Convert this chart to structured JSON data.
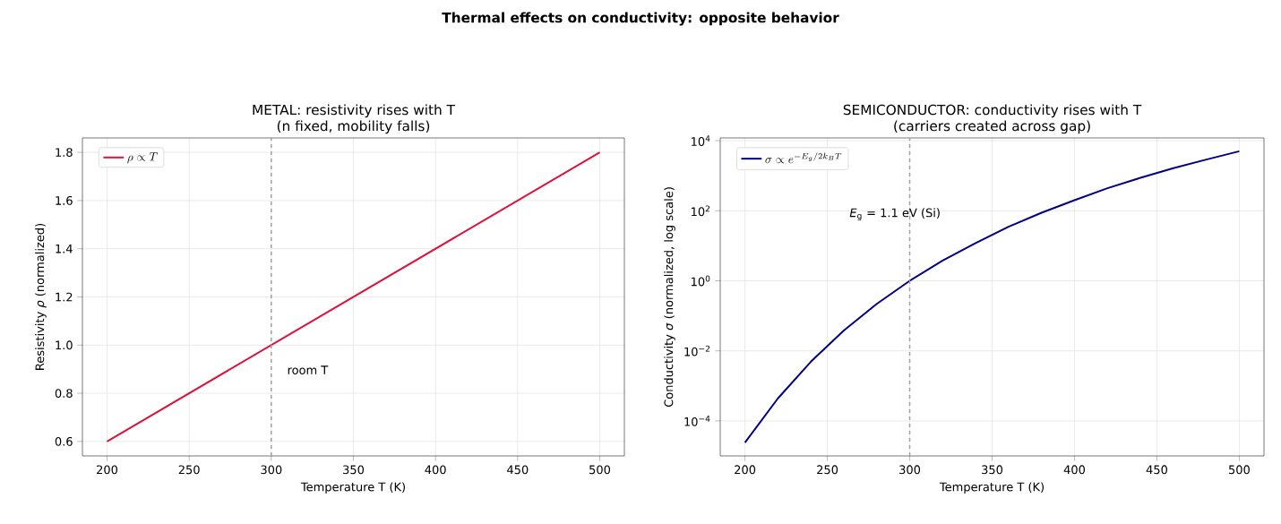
{
  "chart_data": [
    {
      "type": "line",
      "title": "METAL: resistivity rises with T",
      "subtitle": "(n fixed, mobility falls)",
      "xlabel": "Temperature T (K)",
      "ylabel": "Resistivity *ρ* (normalized)",
      "x": [
        200,
        500
      ],
      "series": [
        {
          "name": "\\rho \\propto T",
          "color": "#dc143c",
          "values": [
            0.6,
            1.8
          ]
        }
      ],
      "xlim": [
        185,
        515
      ],
      "ylim": [
        0.54,
        1.86
      ],
      "xticks": [
        200,
        250,
        300,
        350,
        400,
        450,
        500
      ],
      "yticks": [
        0.6,
        0.8,
        {
          "value": 1,
          "label": "1.0"
        },
        1.2,
        1.4,
        1.6,
        1.8
      ],
      "grid": true,
      "legend": "top left",
      "marker": "none",
      "line_style": "solid",
      "ref_lines": [
        {
          "axis": "x",
          "value": 300,
          "color": "#a0a0a0",
          "line_style": "dashed"
        }
      ],
      "annotations": [
        "Thermal effects on conductivity: opposite behavior",
        "room T"
      ]
    },
    {
      "type": "line",
      "title": "SEMICONDUCTOR: conductivity rises with T",
      "subtitle": "(carriers created across gap)",
      "xlabel": "Temperature T (K)",
      "ylabel": "Conductivity *σ* (normalized, log scale)",
      "x": [
        200,
        220,
        240,
        260,
        280,
        300,
        320,
        340,
        360,
        380,
        400,
        420,
        440,
        460,
        480,
        500
      ],
      "series": [
        {
          "name": "\\sigma \\propto e^{-E_g/2k_BT}",
          "color": "#000080",
          "values": [
            2.4e-05,
            0.00044,
            0.0049,
            0.038,
            0.22,
            1,
            3.8,
            12,
            35,
            88,
            200,
            440,
            870,
            1640,
            2900,
            5000
          ]
        }
      ],
      "log": "y",
      "xlim": [
        185,
        515
      ],
      "ylim": [
        1e-05,
        12000
      ],
      "xticks": [
        200,
        250,
        300,
        350,
        400,
        450,
        500
      ],
      "yticks": [
        {
          "value": 0.0001,
          "label": "10$^{−4}$"
        },
        {
          "value": 0.01,
          "label": "10$^{−2}$"
        },
        {
          "value": 1,
          "label": "10$^{0}$"
        },
        {
          "value": 100,
          "label": "10$^{2}$"
        },
        {
          "value": 10000,
          "label": "10$^{4}$"
        }
      ],
      "grid": true,
      "legend": "top left",
      "marker": "none",
      "line_style": "solid",
      "ref_lines": [
        {
          "axis": "x",
          "value": 300,
          "color": "#a0a0a0",
          "line_style": "dashed"
        }
      ],
      "annotations": [
        "*E*$_{g}$ = 1.1 eV (Si)"
      ]
    }
  ]
}
